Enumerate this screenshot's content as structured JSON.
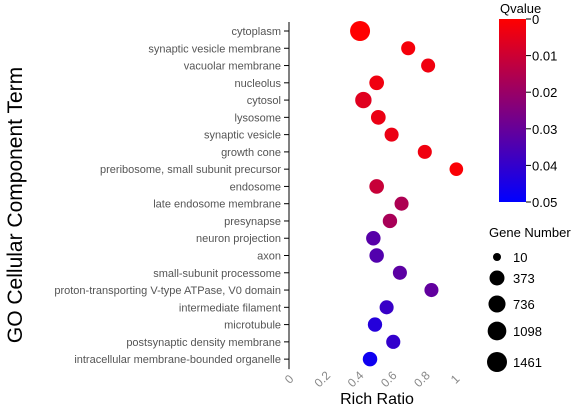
{
  "chart_data": {
    "type": "scatter",
    "ylabel": "GO Cellular Component Term",
    "xlabel": "Rich Ratio",
    "xlim": [
      0,
      1
    ],
    "x_ticks": [
      "0",
      "0.2",
      "0.4",
      "0.6",
      "0.8",
      "1"
    ],
    "grid": false,
    "categories": [
      "cytoplasm",
      "synaptic vesicle membrane",
      "vacuolar membrane",
      "nucleolus",
      "cytosol",
      "lysosome",
      "synaptic vesicle",
      "growth cone",
      "preribosome, small subunit precursor",
      "endosome",
      "late endosome membrane",
      "presynapse",
      "neuron projection",
      "axon",
      "small-subunit processome",
      "proton-transporting V-type ATPase, V0 domain",
      "intermediate filament",
      "microtubule",
      "postsynaptic density membrane",
      "intracellular membrane-bounded organelle"
    ],
    "points": [
      {
        "term": "cytoplasm",
        "rich_ratio": 0.41,
        "qvalue": 0.0,
        "gene_number": 1461
      },
      {
        "term": "synaptic vesicle membrane",
        "rich_ratio": 0.7,
        "qvalue": 0.002,
        "gene_number": 250
      },
      {
        "term": "vacuolar membrane",
        "rich_ratio": 0.82,
        "qvalue": 0.003,
        "gene_number": 250
      },
      {
        "term": "nucleolus",
        "rich_ratio": 0.51,
        "qvalue": 0.003,
        "gene_number": 330
      },
      {
        "term": "cytosol",
        "rich_ratio": 0.43,
        "qvalue": 0.006,
        "gene_number": 600
      },
      {
        "term": "lysosome",
        "rich_ratio": 0.52,
        "qvalue": 0.004,
        "gene_number": 330
      },
      {
        "term": "synaptic vesicle",
        "rich_ratio": 0.6,
        "qvalue": 0.004,
        "gene_number": 250
      },
      {
        "term": "growth cone",
        "rich_ratio": 0.8,
        "qvalue": 0.003,
        "gene_number": 250
      },
      {
        "term": "preribosome, small subunit precursor",
        "rich_ratio": 0.99,
        "qvalue": 0.001,
        "gene_number": 200
      },
      {
        "term": "endosome",
        "rich_ratio": 0.51,
        "qvalue": 0.011,
        "gene_number": 320
      },
      {
        "term": "late endosome membrane",
        "rich_ratio": 0.66,
        "qvalue": 0.016,
        "gene_number": 250
      },
      {
        "term": "presynapse",
        "rich_ratio": 0.59,
        "qvalue": 0.017,
        "gene_number": 290
      },
      {
        "term": "neuron projection",
        "rich_ratio": 0.49,
        "qvalue": 0.033,
        "gene_number": 300
      },
      {
        "term": "axon",
        "rich_ratio": 0.51,
        "qvalue": 0.034,
        "gene_number": 300
      },
      {
        "term": "small-subunit processome",
        "rich_ratio": 0.65,
        "qvalue": 0.032,
        "gene_number": 250
      },
      {
        "term": "proton-transporting V-type ATPase, V0 domain",
        "rich_ratio": 0.84,
        "qvalue": 0.031,
        "gene_number": 250
      },
      {
        "term": "intermediate filament",
        "rich_ratio": 0.57,
        "qvalue": 0.039,
        "gene_number": 250
      },
      {
        "term": "microtubule",
        "rich_ratio": 0.5,
        "qvalue": 0.043,
        "gene_number": 280
      },
      {
        "term": "postsynaptic density membrane",
        "rich_ratio": 0.61,
        "qvalue": 0.04,
        "gene_number": 260
      },
      {
        "term": "intracellular membrane-bounded organelle",
        "rich_ratio": 0.47,
        "qvalue": 0.047,
        "gene_number": 300
      }
    ],
    "color_legend": {
      "title": "Qvalue",
      "min": 0,
      "max": 0.05,
      "ticks": [
        "0",
        "0.01",
        "0.02",
        "0.03",
        "0.04",
        "0.05"
      ],
      "low_color": "#ff0000",
      "high_color": "#0000ff",
      "placement": "top-right"
    },
    "size_legend": {
      "title": "Gene Number",
      "values": [
        10,
        373,
        736,
        1098,
        1461
      ],
      "labels": [
        "10",
        "373",
        "736",
        "1098",
        "1461"
      ],
      "placement": "right"
    }
  }
}
